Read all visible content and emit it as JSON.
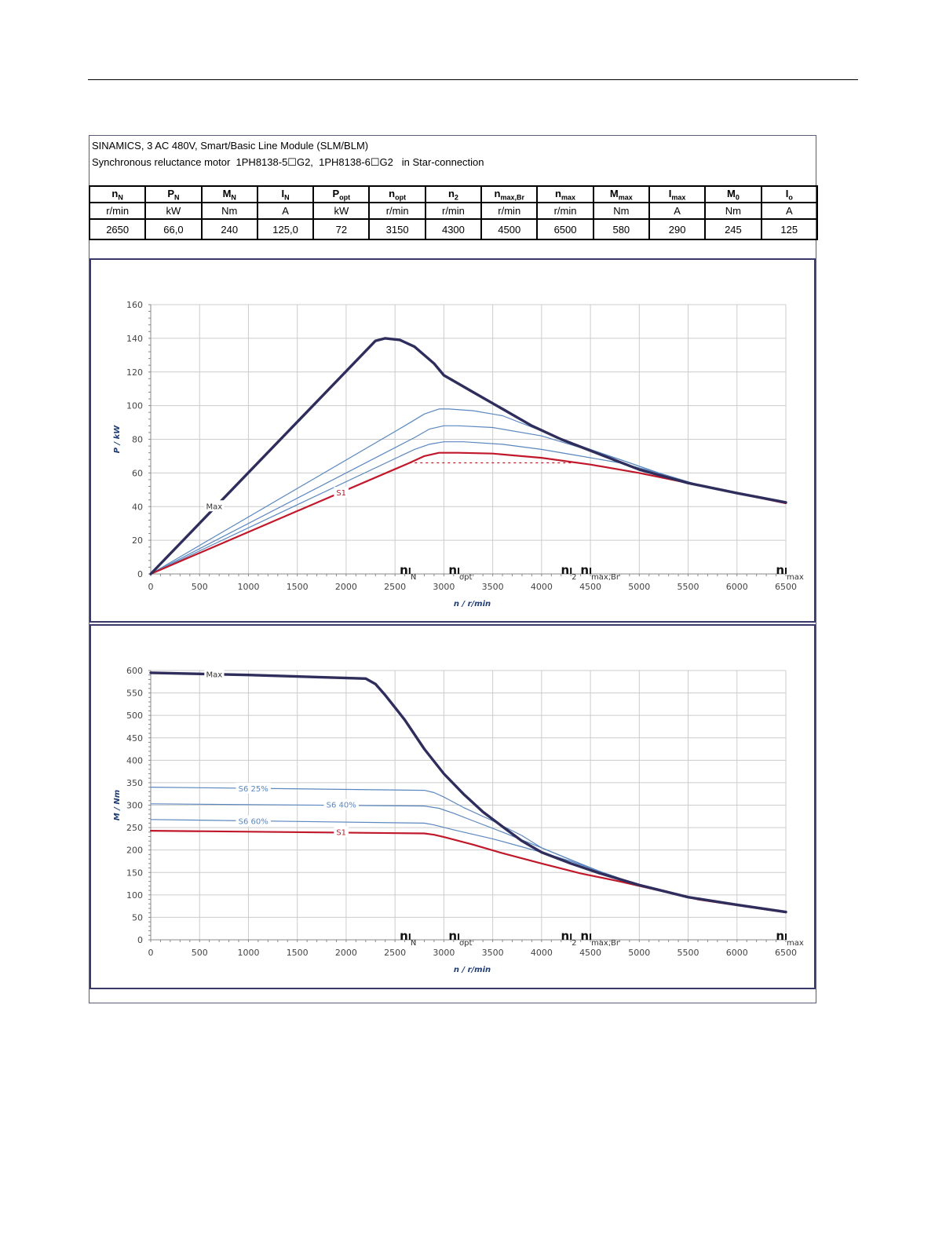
{
  "header": {
    "line1": "SINAMICS, 3 AC 480V, Smart/Basic Line Module (SLM/BLM)",
    "line2": "Synchronous reluctance motor  1PH8138-5☐G2,  1PH8138-6☐G2   in Star-connection"
  },
  "spec_table": {
    "columns": [
      {
        "sym": "n",
        "sub": "N",
        "unit": "r/min",
        "value": "2650"
      },
      {
        "sym": "P",
        "sub": "N",
        "unit": "kW",
        "value": "66,0"
      },
      {
        "sym": "M",
        "sub": "N",
        "unit": "Nm",
        "value": "240"
      },
      {
        "sym": "I",
        "sub": "N",
        "unit": "A",
        "value": "125,0"
      },
      {
        "sym": "P",
        "sub": "opt",
        "unit": "kW",
        "value": "72"
      },
      {
        "sym": "n",
        "sub": "opt",
        "unit": "r/min",
        "value": "3150"
      },
      {
        "sym": "n",
        "sub": "2",
        "unit": "r/min",
        "value": "4300"
      },
      {
        "sym": "n",
        "sub": "max,Br",
        "unit": "r/min",
        "value": "4500"
      },
      {
        "sym": "n",
        "sub": "max",
        "unit": "r/min",
        "value": "6500"
      },
      {
        "sym": "M",
        "sub": "max",
        "unit": "Nm",
        "value": "580"
      },
      {
        "sym": "I",
        "sub": "max",
        "unit": "A",
        "value": "290"
      },
      {
        "sym": "M",
        "sub": "0",
        "unit": "Nm",
        "value": "245"
      },
      {
        "sym": "I",
        "sub": "o",
        "unit": "A",
        "value": "125"
      }
    ]
  },
  "colors": {
    "max": "#2e2d5c",
    "s1": "#c0182a",
    "s6": "#5a87bf",
    "grid": "#cccccc",
    "dotted": "#c0182a"
  },
  "chart_data": [
    {
      "type": "line",
      "xlabel": "n / r/min",
      "ylabel": "P / kW",
      "xlim": [
        0,
        6500
      ],
      "ylim": [
        0,
        160
      ],
      "xticks": [
        0,
        500,
        1000,
        1500,
        2000,
        2500,
        3000,
        3500,
        4000,
        4500,
        5000,
        5500,
        6000,
        6500
      ],
      "yticks": [
        0,
        20,
        40,
        60,
        80,
        100,
        120,
        140,
        160
      ],
      "grid": true,
      "series": [
        {
          "name": "Max",
          "style": "max",
          "points": [
            [
              0,
              0
            ],
            [
              2300,
              138.5
            ],
            [
              2400,
              140
            ],
            [
              2550,
              139
            ],
            [
              2700,
              135
            ],
            [
              2900,
              125
            ],
            [
              3000,
              118
            ],
            [
              3300,
              108
            ],
            [
              3600,
              98
            ],
            [
              3900,
              88
            ],
            [
              4200,
              80
            ],
            [
              4600,
              71
            ],
            [
              5000,
              62
            ],
            [
              5500,
              54
            ],
            [
              6000,
              48
            ],
            [
              6500,
              42.5
            ]
          ]
        },
        {
          "name": "",
          "style": "s6",
          "points": [
            [
              0,
              0
            ],
            [
              2600,
              88
            ],
            [
              2800,
              95
            ],
            [
              2950,
              98
            ],
            [
              3050,
              98
            ],
            [
              3300,
              97
            ],
            [
              3600,
              94
            ],
            [
              4000,
              85
            ],
            [
              4400,
              76
            ],
            [
              4800,
              68
            ],
            [
              5200,
              60
            ],
            [
              5600,
              53
            ],
            [
              6000,
              48
            ],
            [
              6500,
              42.5
            ]
          ]
        },
        {
          "name": "",
          "style": "s6",
          "points": [
            [
              0,
              0
            ],
            [
              2700,
              81
            ],
            [
              2850,
              86
            ],
            [
              3000,
              88
            ],
            [
              3150,
              88
            ],
            [
              3500,
              87
            ],
            [
              4000,
              82
            ],
            [
              4400,
              75
            ],
            [
              4800,
              68
            ],
            [
              5200,
              60
            ],
            [
              5600,
              53
            ],
            [
              6000,
              48
            ],
            [
              6500,
              42.5
            ]
          ]
        },
        {
          "name": "",
          "style": "s6",
          "points": [
            [
              0,
              0
            ],
            [
              2700,
              74
            ],
            [
              2850,
              77
            ],
            [
              3000,
              78.5
            ],
            [
              3200,
              78.5
            ],
            [
              3600,
              77
            ],
            [
              4000,
              74
            ],
            [
              4400,
              70
            ],
            [
              4800,
              66
            ],
            [
              5200,
              60
            ],
            [
              5600,
              53
            ],
            [
              6000,
              48
            ],
            [
              6500,
              42.5
            ]
          ]
        },
        {
          "name": "S1",
          "style": "s1",
          "points": [
            [
              0,
              0
            ],
            [
              2650,
              66
            ],
            [
              2800,
              70
            ],
            [
              2950,
              72
            ],
            [
              3150,
              72
            ],
            [
              3500,
              71.5
            ],
            [
              4000,
              69
            ],
            [
              4500,
              65
            ],
            [
              5000,
              60
            ],
            [
              5500,
              54
            ],
            [
              6000,
              48
            ],
            [
              6500,
              42
            ]
          ]
        },
        {
          "name": "",
          "style": "dotted",
          "points": [
            [
              2650,
              66
            ],
            [
              4300,
              66
            ]
          ]
        }
      ],
      "series_labels": [
        {
          "text": "Max",
          "x": 650,
          "y": 40,
          "style": "max"
        },
        {
          "text": "S1",
          "x": 1950,
          "y": 48,
          "style": "s1"
        }
      ],
      "markers": [
        {
          "sym": "n",
          "sub": "N",
          "x": 2650
        },
        {
          "sym": "n",
          "sub": "opt",
          "x": 3150
        },
        {
          "sym": "n",
          "sub": "2",
          "x": 4300
        },
        {
          "sym": "n",
          "sub": "max,Br",
          "x": 4500
        },
        {
          "sym": "n",
          "sub": "max",
          "x": 6500
        }
      ]
    },
    {
      "type": "line",
      "xlabel": "n / r/min",
      "ylabel": "M / Nm",
      "xlim": [
        0,
        6500
      ],
      "ylim": [
        0,
        600
      ],
      "xticks": [
        0,
        500,
        1000,
        1500,
        2000,
        2500,
        3000,
        3500,
        4000,
        4500,
        5000,
        5500,
        6000,
        6500
      ],
      "yticks": [
        0,
        50,
        100,
        150,
        200,
        250,
        300,
        350,
        400,
        450,
        500,
        550,
        600
      ],
      "grid": true,
      "series": [
        {
          "name": "Max",
          "style": "max",
          "points": [
            [
              0,
              595
            ],
            [
              1000,
              590
            ],
            [
              2200,
              582
            ],
            [
              2300,
              570
            ],
            [
              2400,
              545
            ],
            [
              2600,
              490
            ],
            [
              2800,
              425
            ],
            [
              3000,
              370
            ],
            [
              3200,
              325
            ],
            [
              3400,
              285
            ],
            [
              3600,
              252
            ],
            [
              3800,
              220
            ],
            [
              4000,
              195
            ],
            [
              4300,
              170
            ],
            [
              4600,
              148
            ],
            [
              5000,
              122
            ],
            [
              5500,
              95
            ],
            [
              6000,
              78
            ],
            [
              6500,
              62
            ]
          ]
        },
        {
          "name": "S6 25%",
          "style": "s6",
          "points": [
            [
              0,
              340
            ],
            [
              2800,
              333
            ],
            [
              2900,
              328
            ],
            [
              3000,
              318
            ],
            [
              3200,
              295
            ],
            [
              3500,
              265
            ],
            [
              3800,
              232
            ],
            [
              4000,
              205
            ],
            [
              4300,
              178
            ],
            [
              4600,
              152
            ],
            [
              5000,
              122
            ],
            [
              5500,
              95
            ],
            [
              6000,
              78
            ],
            [
              6500,
              62
            ]
          ]
        },
        {
          "name": "S6 40%",
          "style": "s6",
          "points": [
            [
              0,
              303
            ],
            [
              2800,
              298
            ],
            [
              2950,
              293
            ],
            [
              3100,
              282
            ],
            [
              3300,
              265
            ],
            [
              3600,
              240
            ],
            [
              4000,
              205
            ],
            [
              4300,
              178
            ],
            [
              4600,
              152
            ],
            [
              5000,
              122
            ],
            [
              5500,
              95
            ],
            [
              6000,
              78
            ],
            [
              6500,
              62
            ]
          ]
        },
        {
          "name": "S6 60%",
          "style": "s6",
          "points": [
            [
              0,
              268
            ],
            [
              2800,
              260
            ],
            [
              2900,
              256
            ],
            [
              3100,
              245
            ],
            [
              3500,
              225
            ],
            [
              4000,
              195
            ],
            [
              4300,
              175
            ],
            [
              4600,
              152
            ],
            [
              5000,
              122
            ],
            [
              5500,
              95
            ],
            [
              6000,
              78
            ],
            [
              6500,
              62
            ]
          ]
        },
        {
          "name": "S1",
          "style": "s1",
          "points": [
            [
              0,
              243
            ],
            [
              2800,
              237
            ],
            [
              2900,
              234
            ],
            [
              3000,
              229
            ],
            [
              3300,
              212
            ],
            [
              3600,
              193
            ],
            [
              4000,
              170
            ],
            [
              4400,
              148
            ],
            [
              4800,
              130
            ],
            [
              5200,
              110
            ],
            [
              5600,
              90
            ],
            [
              6000,
              77
            ],
            [
              6500,
              61
            ]
          ]
        }
      ],
      "series_labels": [
        {
          "text": "Max",
          "x": 650,
          "y": 590,
          "style": "max"
        },
        {
          "text": "S6 25%",
          "x": 1050,
          "y": 336,
          "style": "s6"
        },
        {
          "text": "S6 40%",
          "x": 1950,
          "y": 300,
          "style": "s6"
        },
        {
          "text": "S6 60%",
          "x": 1050,
          "y": 263,
          "style": "s6"
        },
        {
          "text": "S1",
          "x": 1950,
          "y": 239,
          "style": "s1"
        }
      ],
      "markers": [
        {
          "sym": "n",
          "sub": "N",
          "x": 2650
        },
        {
          "sym": "n",
          "sub": "opt",
          "x": 3150
        },
        {
          "sym": "n",
          "sub": "2",
          "x": 4300
        },
        {
          "sym": "n",
          "sub": "max,Br",
          "x": 4500
        },
        {
          "sym": "n",
          "sub": "max",
          "x": 6500
        }
      ]
    }
  ]
}
